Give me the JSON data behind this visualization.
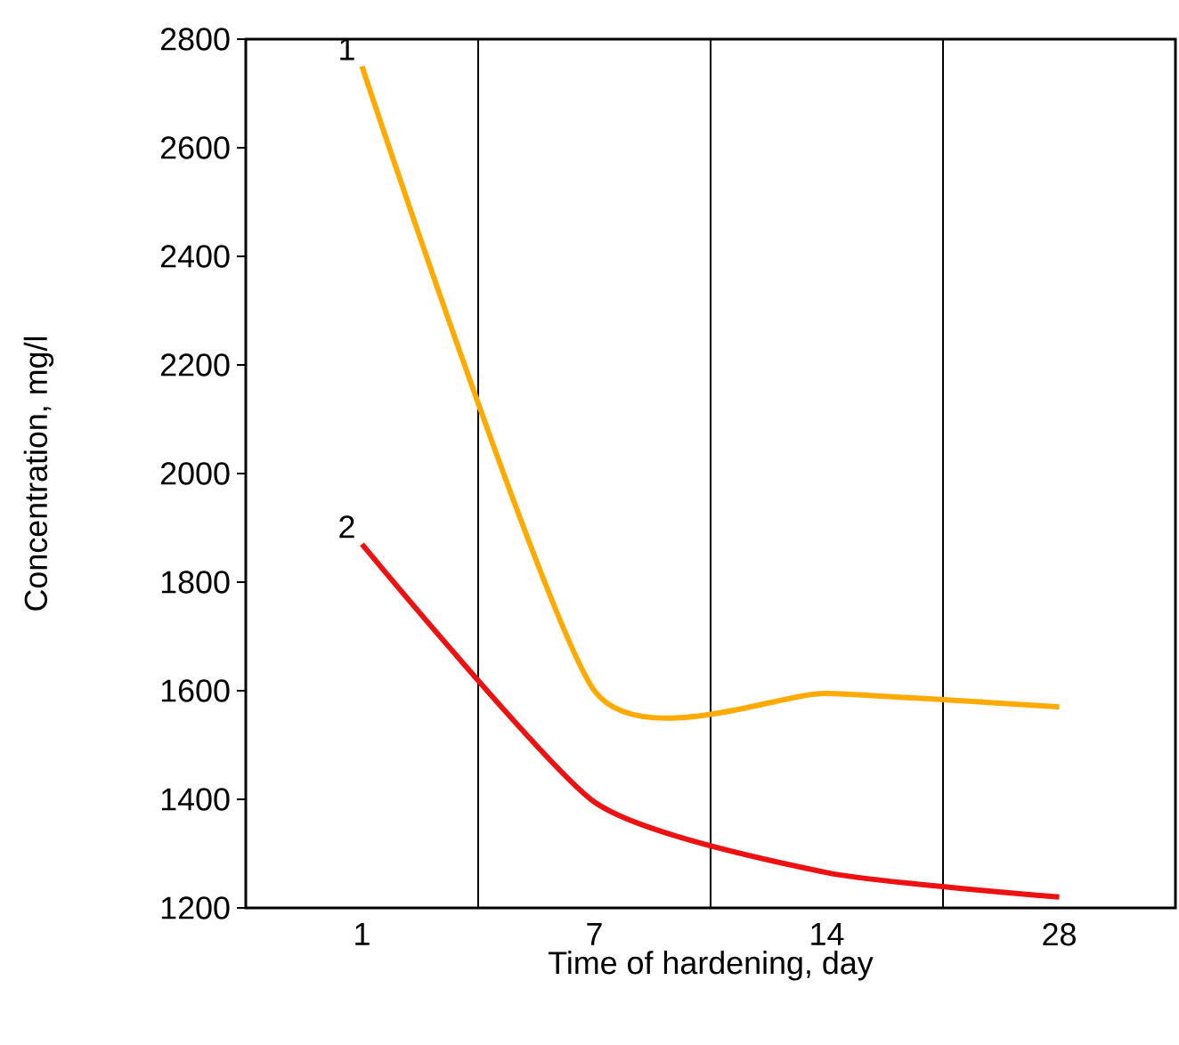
{
  "chart_data": {
    "type": "line",
    "xlabel": "Time of hardening, day",
    "ylabel": "Concentration, mg/l",
    "categories": [
      "1",
      "7",
      "14",
      "28"
    ],
    "ylim": [
      1200,
      2800
    ],
    "yticks": [
      1200,
      1400,
      1600,
      1800,
      2000,
      2200,
      2400,
      2600,
      2800
    ],
    "grid": "x",
    "marker": "none",
    "line_style": "solid",
    "series": [
      {
        "color": "#ffaa00",
        "values": [
          2750,
          1600,
          1595,
          1570
        ]
      },
      {
        "color": "#ee1111",
        "values": [
          1870,
          1395,
          1265,
          1220
        ]
      }
    ],
    "annotations": [
      {
        "text": "1",
        "x": "1",
        "y": 2750
      },
      {
        "text": "2",
        "x": "1",
        "y": 1870
      }
    ]
  }
}
